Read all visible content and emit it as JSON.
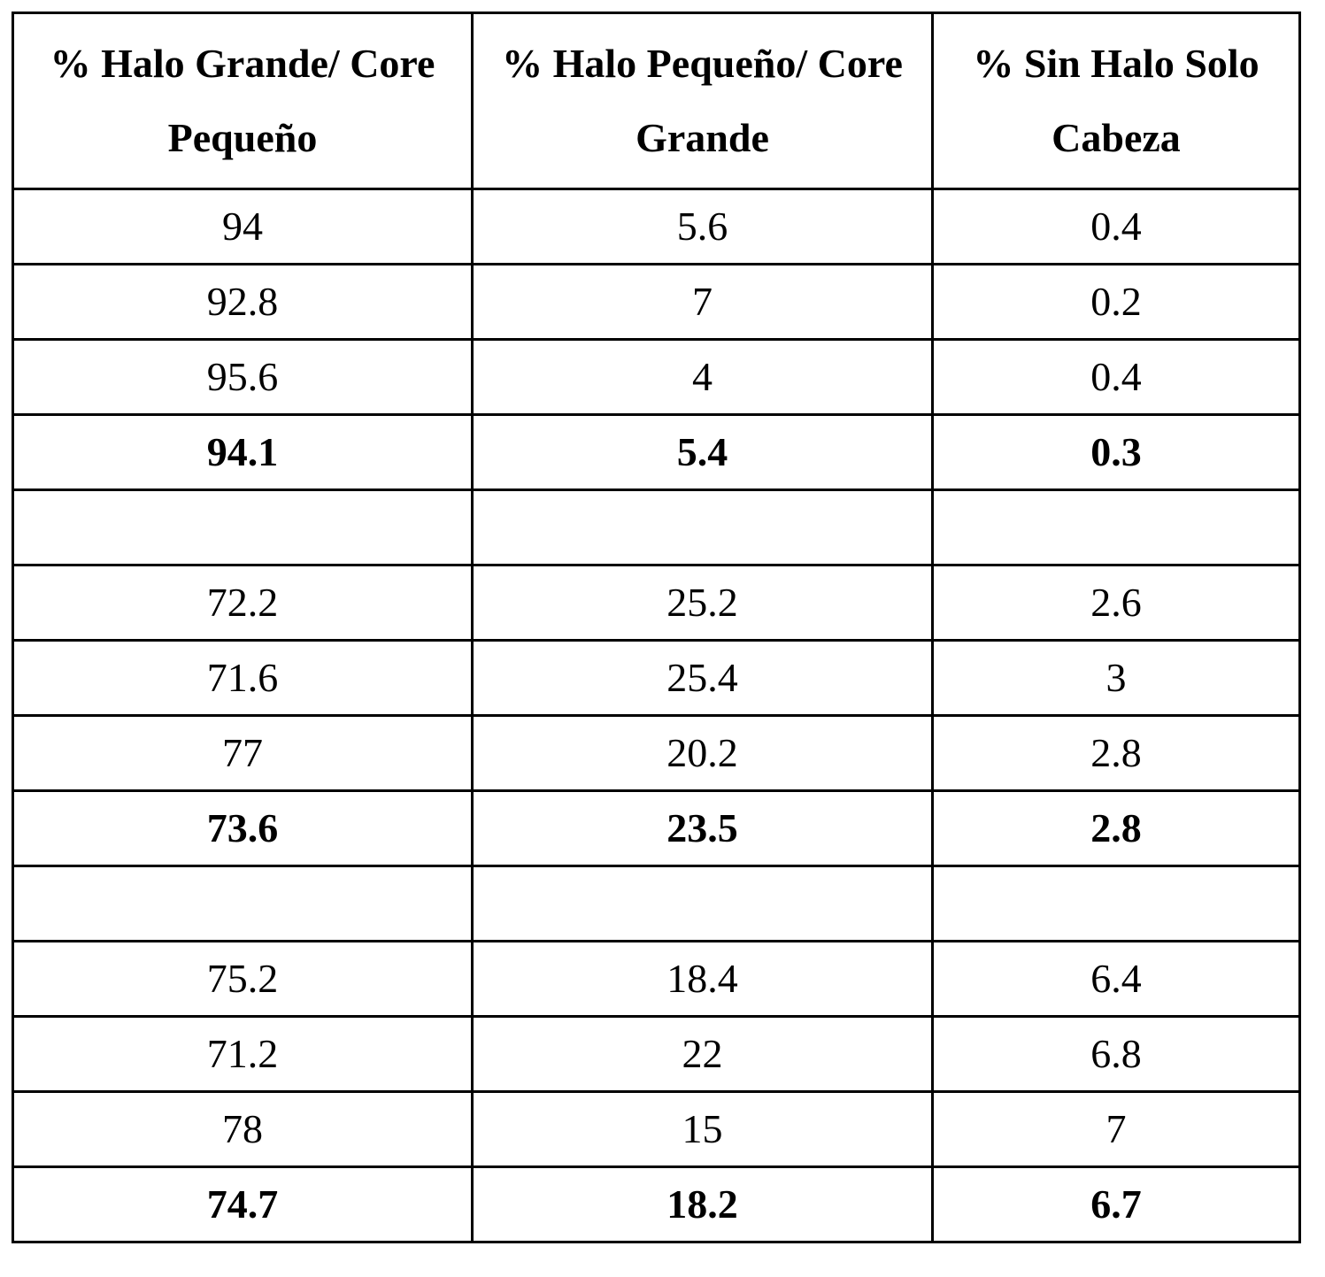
{
  "table": {
    "headers": [
      "% Halo Grande/ Core Pequeño",
      "% Halo Pequeño/ Core Grande",
      "% Sin Halo Solo Cabeza"
    ],
    "rows": [
      {
        "cells": [
          "94",
          "5.6",
          "0.4"
        ],
        "bold": false
      },
      {
        "cells": [
          "92.8",
          "7",
          "0.2"
        ],
        "bold": false
      },
      {
        "cells": [
          "95.6",
          "4",
          "0.4"
        ],
        "bold": false
      },
      {
        "cells": [
          "94.1",
          "5.4",
          "0.3"
        ],
        "bold": true
      },
      {
        "cells": [
          "",
          "",
          ""
        ],
        "bold": false
      },
      {
        "cells": [
          "72.2",
          "25.2",
          "2.6"
        ],
        "bold": false
      },
      {
        "cells": [
          "71.6",
          "25.4",
          "3"
        ],
        "bold": false
      },
      {
        "cells": [
          "77",
          "20.2",
          "2.8"
        ],
        "bold": false
      },
      {
        "cells": [
          "73.6",
          "23.5",
          "2.8"
        ],
        "bold": true
      },
      {
        "cells": [
          "",
          "",
          ""
        ],
        "bold": false
      },
      {
        "cells": [
          "75.2",
          "18.4",
          "6.4"
        ],
        "bold": false
      },
      {
        "cells": [
          "71.2",
          "22",
          "6.8"
        ],
        "bold": false
      },
      {
        "cells": [
          "78",
          "15",
          "7"
        ],
        "bold": false
      },
      {
        "cells": [
          "74.7",
          "18.2",
          "6.7"
        ],
        "bold": true
      }
    ]
  }
}
